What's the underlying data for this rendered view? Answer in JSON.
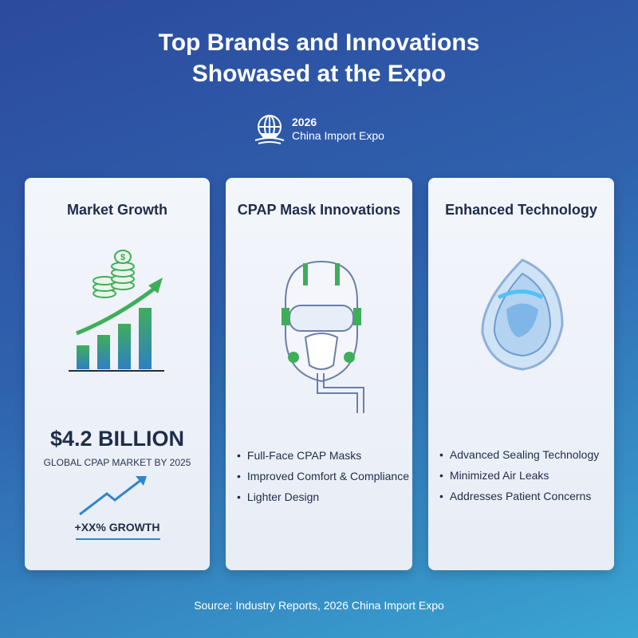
{
  "header": {
    "title_line1": "Top Brands and Innovations",
    "title_line2": "Showased at the Expo",
    "logo_year": "2026",
    "logo_name": "China Import Expo"
  },
  "cards": [
    {
      "title": "Market Growth",
      "stat": "$4.2 BILLION",
      "stat_caption": "GLOBAL CPAP MARKET BY 2025",
      "growth": "+XX% GROWTH",
      "icon": "bar-chart-coins-icon"
    },
    {
      "title": "CPAP Mask Innovations",
      "icon": "cpap-mask-icon",
      "bullets": [
        "Full-Face CPAP Masks",
        "Improved Comfort & Compliance",
        "Lighter Design"
      ]
    },
    {
      "title": "Enhanced Technology",
      "icon": "sealing-mask-icon",
      "bullets": [
        "Advanced Sealing Technology",
        "Minimized Air Leaks",
        "Addresses Patient Concerns"
      ]
    }
  ],
  "footer": {
    "source": "Source: Industry Reports, 2026 China Import Expo"
  },
  "colors": {
    "green": "#3fae5a",
    "blue": "#2f7fc4",
    "navy": "#1f2d4a"
  }
}
